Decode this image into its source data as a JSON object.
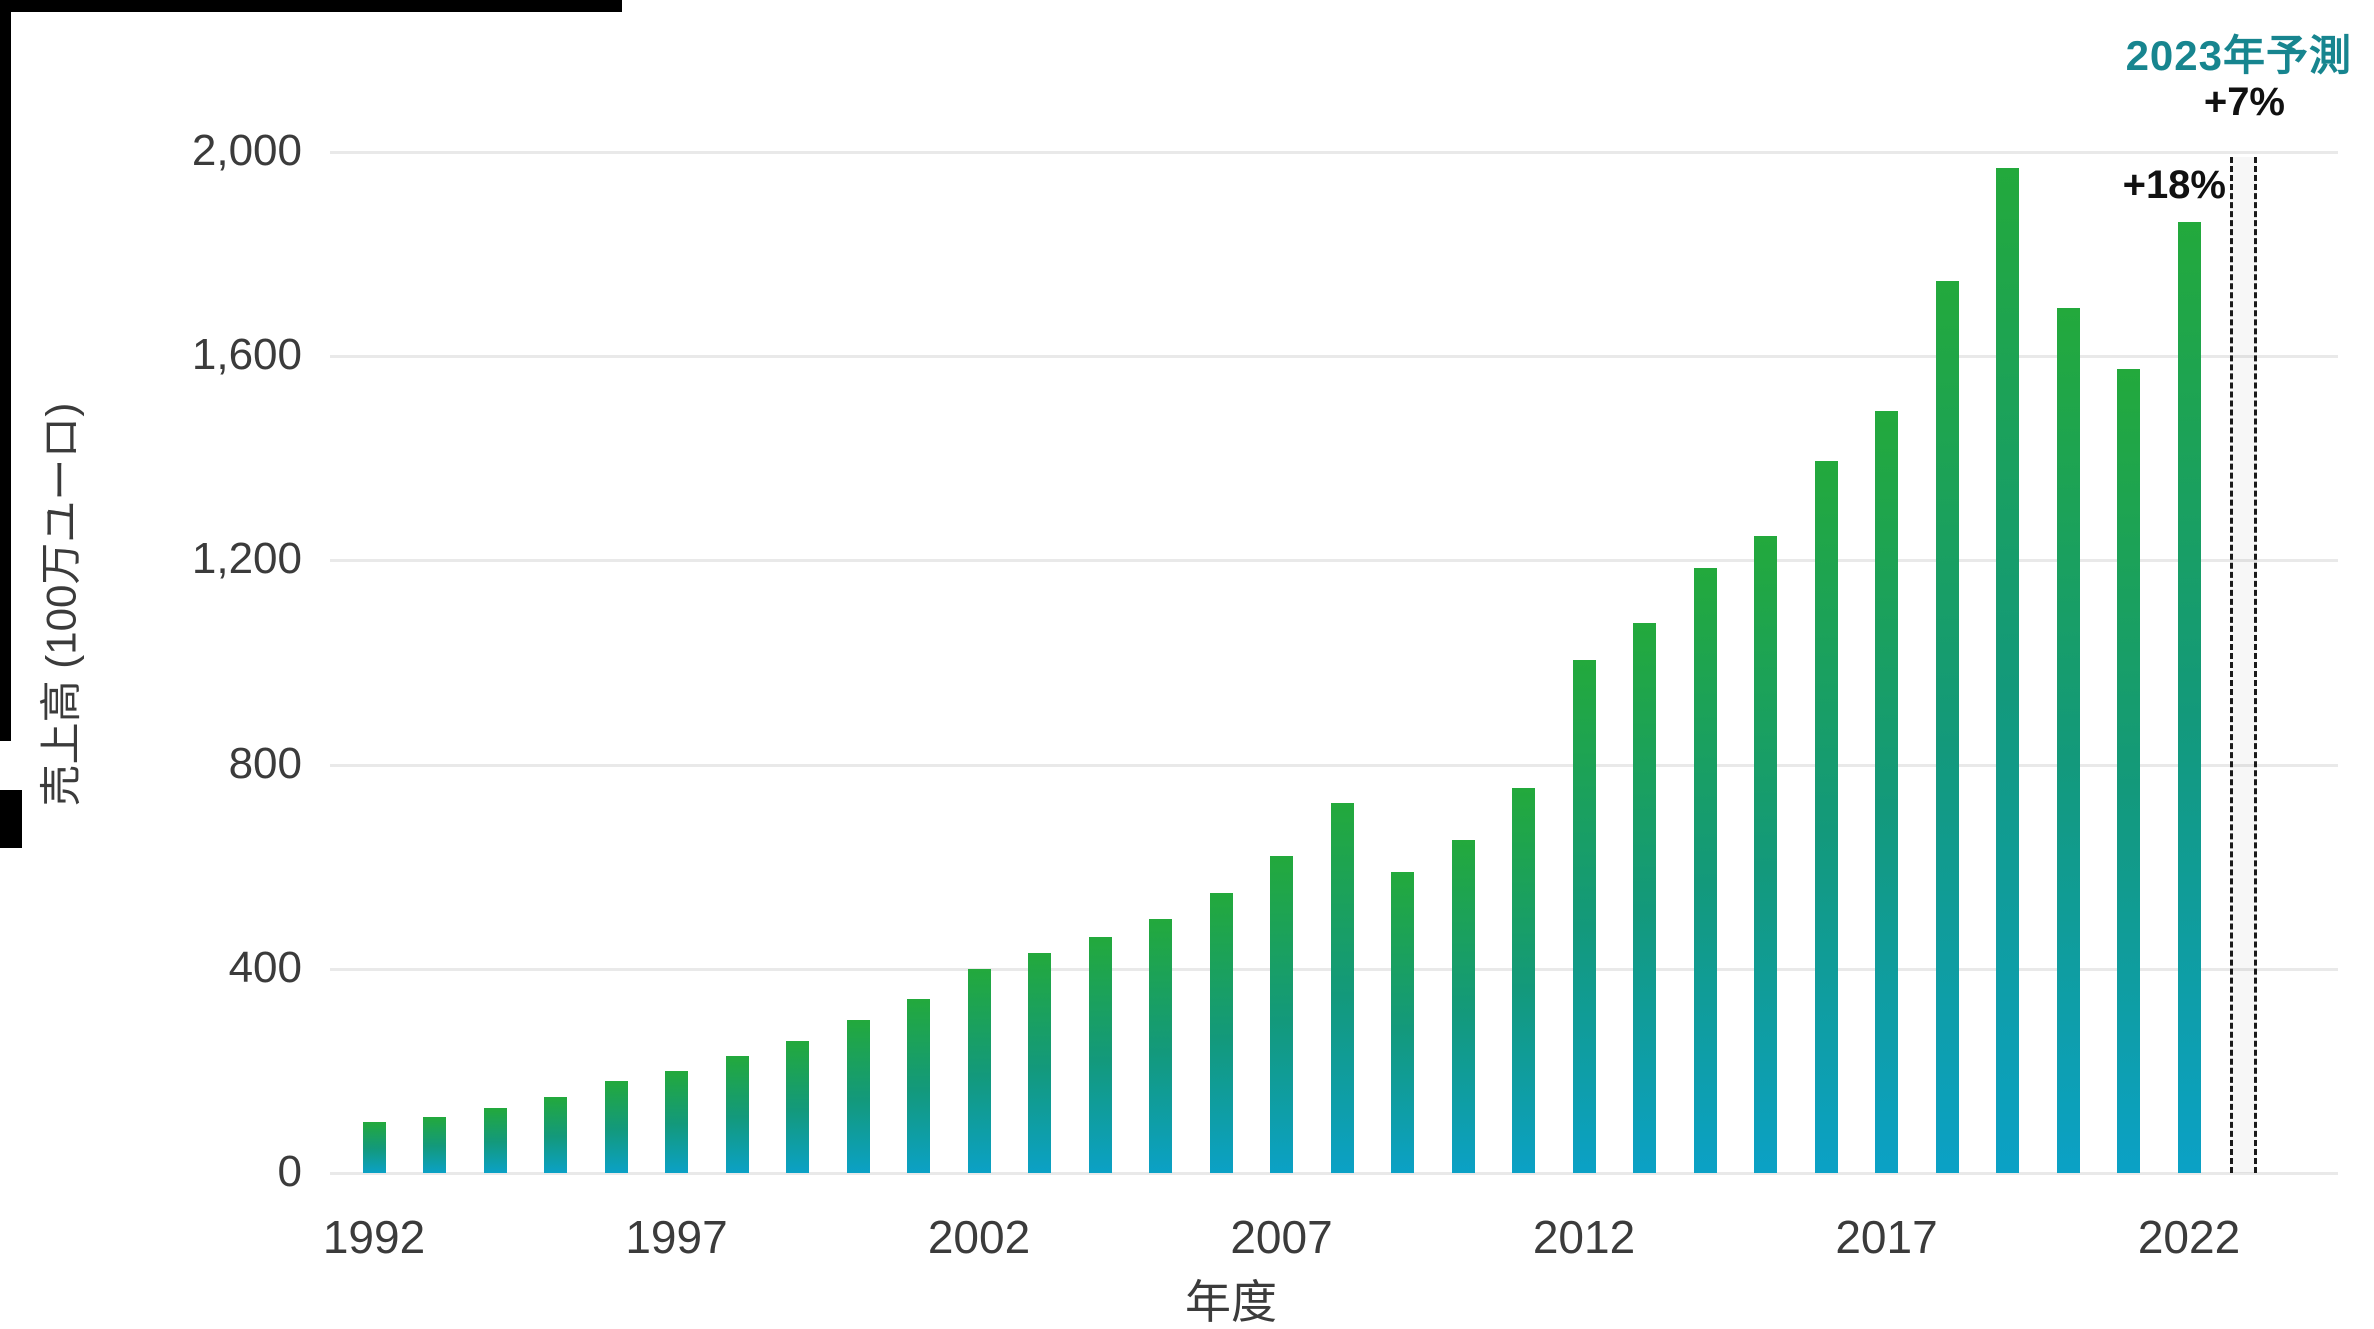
{
  "annotations": {
    "forecast_title": "2023年予測",
    "forecast_growth": "+7%",
    "yoy_growth_2022": "+18%"
  },
  "y_axis": {
    "title": "売上高 (100万ユーロ)",
    "ticks": [
      {
        "label": "0",
        "value": 0
      },
      {
        "label": "400",
        "value": 400
      },
      {
        "label": "800",
        "value": 800
      },
      {
        "label": "1,200",
        "value": 1200
      },
      {
        "label": "1,600",
        "value": 1600
      },
      {
        "label": "2,000",
        "value": 2000
      }
    ]
  },
  "x_axis": {
    "title": "年度",
    "ticks": [
      {
        "label": "1992",
        "year": 1992
      },
      {
        "label": "1997",
        "year": 1997
      },
      {
        "label": "2002",
        "year": 2002
      },
      {
        "label": "2007",
        "year": 2007
      },
      {
        "label": "2012",
        "year": 2012
      },
      {
        "label": "2017",
        "year": 2017
      },
      {
        "label": "2022",
        "year": 2022
      }
    ]
  },
  "chart_data": {
    "type": "bar",
    "title": "",
    "xlabel": "年度",
    "ylabel": "売上高 (100万ユーロ)",
    "ylim": [
      0,
      2000
    ],
    "grid": true,
    "categories": [
      1992,
      1993,
      1994,
      1995,
      1996,
      1997,
      1998,
      1999,
      2000,
      2001,
      2002,
      2003,
      2004,
      2005,
      2006,
      2007,
      2008,
      2009,
      2010,
      2011,
      2012,
      2013,
      2014,
      2015,
      2016,
      2017,
      2018,
      2019,
      2020,
      2021,
      2022
    ],
    "values": [
      100,
      110,
      128,
      148,
      180,
      200,
      230,
      258,
      300,
      340,
      400,
      430,
      462,
      498,
      548,
      620,
      724,
      590,
      652,
      755,
      1004,
      1078,
      1185,
      1247,
      1395,
      1492,
      1748,
      1968,
      1694,
      1574,
      1862
    ],
    "forecast": {
      "year": 2023,
      "value": 1990,
      "growth": "+7%",
      "label": "2023年予測",
      "style": "dashed-outline"
    },
    "annotations": [
      {
        "text": "+18%",
        "target_year": 2022
      },
      {
        "text": "+7%",
        "target_year": 2023
      },
      {
        "text": "2023年予測",
        "target_year": 2023
      }
    ]
  },
  "colors": {
    "bar_gradient_top": "#23a93c",
    "bar_gradient_mid": "#13997b",
    "bar_gradient_bottom": "#0ba1c6",
    "forecast_text_teal": "#17858f",
    "annotation_black": "#111111",
    "axis_text": "#3b3b3b",
    "gridline": "#e9e9e9",
    "frame_black": "#000000",
    "background": "#ffffff"
  }
}
